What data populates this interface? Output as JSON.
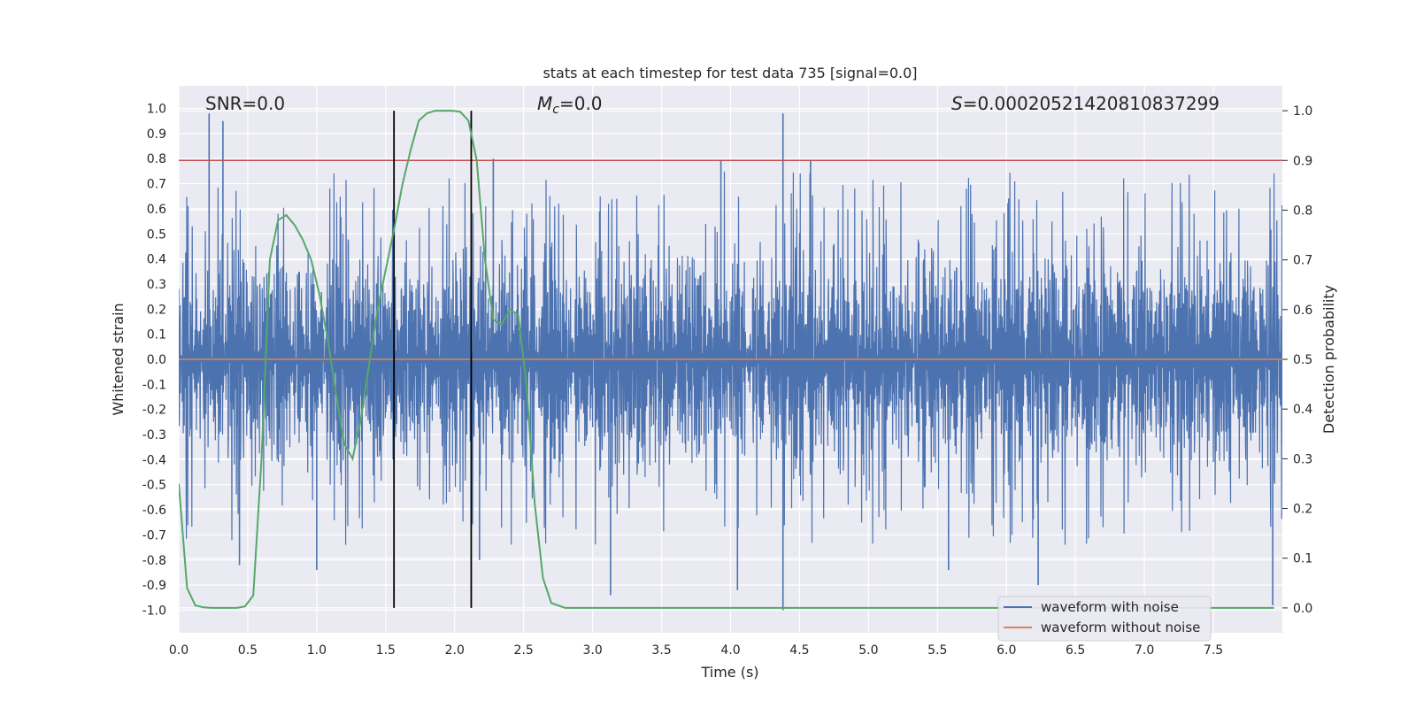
{
  "chart_data": {
    "type": "line",
    "title": "stats at each timestep for test data 735 [signal=0.0]",
    "xlabel": "Time (s)",
    "ylabel": "Whitened strain",
    "y2label": "Detection probability",
    "xlim": [
      0.0,
      8.0
    ],
    "ylim": [
      -1.09,
      1.09
    ],
    "y2lim": [
      -0.05,
      1.05
    ],
    "x_ticks": [
      "0.0",
      "0.5",
      "1.0",
      "1.5",
      "2.0",
      "2.5",
      "3.0",
      "3.5",
      "4.0",
      "4.5",
      "5.0",
      "5.5",
      "6.0",
      "6.5",
      "7.0",
      "7.5"
    ],
    "y_ticks": [
      "1.0",
      "0.9",
      "0.8",
      "0.7",
      "0.6",
      "0.5",
      "0.4",
      "0.3",
      "0.2",
      "0.1",
      "0.0",
      "-0.1",
      "-0.2",
      "-0.3",
      "-0.4",
      "-0.5",
      "-0.6",
      "-0.7",
      "-0.8",
      "-0.9",
      "-1.0"
    ],
    "y2_ticks": [
      "1.0",
      "0.9",
      "0.8",
      "0.7",
      "0.6",
      "0.5",
      "0.4",
      "0.3",
      "0.2",
      "0.1",
      "0.0"
    ],
    "grid": true,
    "annotations": {
      "snr": "SNR=0.0",
      "mc_symbol": "M",
      "mc_sub": "c",
      "mc_value": "=0.0",
      "s_symbol": "S",
      "s_value": "=0.00020521420810837299"
    },
    "threshold_prob": 0.9,
    "vertical_lines": [
      1.56,
      2.12
    ],
    "legend": {
      "position": "lower-right",
      "entries": [
        "waveform with noise",
        "waveform without noise"
      ]
    },
    "colors": {
      "noise": "#4c72b0",
      "clean": "#dd8452",
      "prob": "#55a868",
      "threshold": "#c44e52",
      "vlines": "#000000",
      "plot_bg": "#eaeaf2"
    },
    "series": [
      {
        "name": "waveform with noise",
        "note": "dense random noise, amplitude mostly within about -0.45..0.5 with spikes up to ~0.98 and down to ~-1.0",
        "spikes": [
          {
            "x": 0.22,
            "y": 0.98
          },
          {
            "x": 0.32,
            "y": 0.95
          },
          {
            "x": 0.44,
            "y": -0.82
          },
          {
            "x": 1.0,
            "y": -0.84
          },
          {
            "x": 2.28,
            "y": 0.8
          },
          {
            "x": 2.18,
            "y": -0.8
          },
          {
            "x": 3.13,
            "y": -0.94
          },
          {
            "x": 3.93,
            "y": 0.79
          },
          {
            "x": 4.05,
            "y": -0.92
          },
          {
            "x": 4.38,
            "y": 0.98
          },
          {
            "x": 4.38,
            "y": -1.0
          },
          {
            "x": 4.58,
            "y": 0.79
          },
          {
            "x": 5.58,
            "y": -0.84
          },
          {
            "x": 6.23,
            "y": -0.9
          },
          {
            "x": 7.93,
            "y": -0.98
          }
        ]
      },
      {
        "name": "waveform without noise",
        "value": 0.0
      },
      {
        "name": "detection probability",
        "x": [
          0.0,
          0.06,
          0.12,
          0.18,
          0.24,
          0.3,
          0.36,
          0.42,
          0.48,
          0.54,
          0.6,
          0.66,
          0.72,
          0.78,
          0.84,
          0.9,
          0.96,
          1.02,
          1.08,
          1.14,
          1.2,
          1.26,
          1.32,
          1.38,
          1.44,
          1.5,
          1.56,
          1.62,
          1.68,
          1.74,
          1.8,
          1.86,
          1.92,
          1.98,
          2.04,
          2.1,
          2.16,
          2.22,
          2.28,
          2.34,
          2.4,
          2.46,
          2.52,
          2.58,
          2.64,
          2.7,
          2.8,
          3.0,
          3.5,
          4.0,
          4.5,
          5.0,
          5.5,
          6.0,
          6.5,
          7.0,
          7.5,
          7.94
        ],
        "values": [
          0.25,
          0.04,
          0.005,
          0.001,
          0.0,
          0.0,
          0.0,
          0.0,
          0.003,
          0.025,
          0.3,
          0.7,
          0.78,
          0.79,
          0.77,
          0.74,
          0.7,
          0.63,
          0.54,
          0.43,
          0.33,
          0.3,
          0.38,
          0.49,
          0.6,
          0.68,
          0.76,
          0.85,
          0.92,
          0.98,
          0.995,
          1.0,
          1.0,
          1.0,
          0.998,
          0.98,
          0.9,
          0.7,
          0.58,
          0.57,
          0.6,
          0.59,
          0.45,
          0.21,
          0.06,
          0.01,
          0.0,
          0.0,
          0.0,
          0.0,
          0.0,
          0.0,
          0.0,
          0.0,
          0.0,
          0.0,
          0.0,
          0.0
        ]
      }
    ]
  }
}
